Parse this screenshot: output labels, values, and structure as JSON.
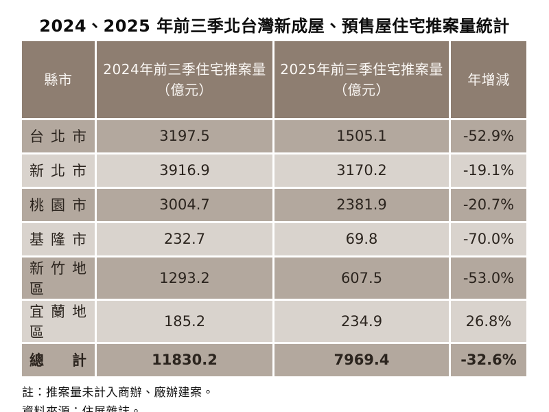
{
  "title": "2024、2025 年前三季北台灣新成屋、預售屋住宅推案量統計",
  "header_display": {
    "city": "縣市",
    "col2024": "2024年前三季住宅推案量\n（億元）",
    "col2025": "2025年前三季住宅推案量\n（億元）",
    "yoy": "年增減"
  },
  "chart_data": {
    "type": "table",
    "title": "2024、2025 年前三季北台灣新成屋、預售屋住宅推案量統計",
    "columns": [
      "縣市",
      "2024年前三季住宅推案量（億元）",
      "2025年前三季住宅推案量（億元）",
      "年增減"
    ],
    "rows": [
      [
        "台北市",
        3197.5,
        1505.1,
        "-52.9%"
      ],
      [
        "新北市",
        3916.9,
        3170.2,
        "-19.1%"
      ],
      [
        "桃園市",
        3004.7,
        2381.9,
        "-20.7%"
      ],
      [
        "基隆市",
        232.7,
        69.8,
        "-70.0%"
      ],
      [
        "新竹地區",
        1293.2,
        607.5,
        "-53.0%"
      ],
      [
        "宜蘭地區",
        185.2,
        234.9,
        "26.8%"
      ],
      [
        "總 計",
        11830.2,
        7969.4,
        "-32.6%"
      ]
    ],
    "notes": [
      "註：推案量未計入商辦、廠辦建案。",
      "資料來源：住展雜誌。"
    ]
  },
  "colors": {
    "header_bg": "#8e7e71",
    "row_dark_bg": "#b3a89e",
    "row_light_bg": "#d9d3cd",
    "cell_border": "#ffffff",
    "header_text": "#fbf8f5",
    "body_text": "#2b241e",
    "title_text": "#0d0d0d"
  }
}
